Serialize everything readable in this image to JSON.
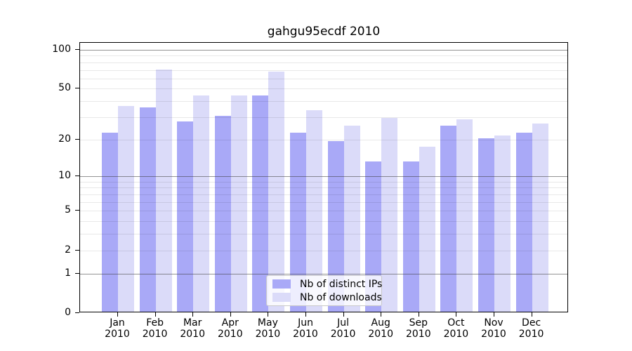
{
  "title": "gahgu95ecdf 2010",
  "chart_data": {
    "type": "bar",
    "title": "gahgu95ecdf 2010",
    "categories": [
      "Jan 2010",
      "Feb 2010",
      "Mar 2010",
      "Apr 2010",
      "May 2010",
      "Jun 2010",
      "Jul 2010",
      "Aug 2010",
      "Sep 2010",
      "Oct 2010",
      "Nov 2010",
      "Dec 2010"
    ],
    "months": [
      "Jan",
      "Feb",
      "Mar",
      "Apr",
      "May",
      "Jun",
      "Jul",
      "Aug",
      "Sep",
      "Oct",
      "Nov",
      "Dec"
    ],
    "year_label": "2010",
    "series": [
      {
        "name": "Nb of distinct IPs",
        "color": "#a9a9f7",
        "values": [
          22,
          35,
          27,
          30,
          43,
          22,
          19,
          13,
          13,
          25,
          20,
          22
        ]
      },
      {
        "name": "Nb of downloads",
        "color": "#dbdbf9",
        "values": [
          36,
          69,
          43,
          43,
          66,
          33,
          25,
          29,
          17,
          28,
          21,
          26
        ]
      }
    ],
    "xlabel": "",
    "ylabel": "",
    "yscale": "log1p",
    "ylim": [
      0,
      113
    ],
    "yticks": [
      100,
      50,
      20,
      10,
      5,
      2,
      1,
      0
    ],
    "major_grid_values": [
      1,
      10,
      100
    ],
    "minor_grid_values": [
      2,
      3,
      4,
      5,
      6,
      7,
      8,
      9,
      20,
      30,
      40,
      50,
      60,
      70,
      80,
      90
    ],
    "grid": true,
    "legend_position": "lower center",
    "colors": {
      "spine": "#000000",
      "major_grid": "#909090",
      "minor_grid": "#e8e8e8",
      "text": "#000000",
      "legend_border": "#c9c9c9"
    }
  }
}
